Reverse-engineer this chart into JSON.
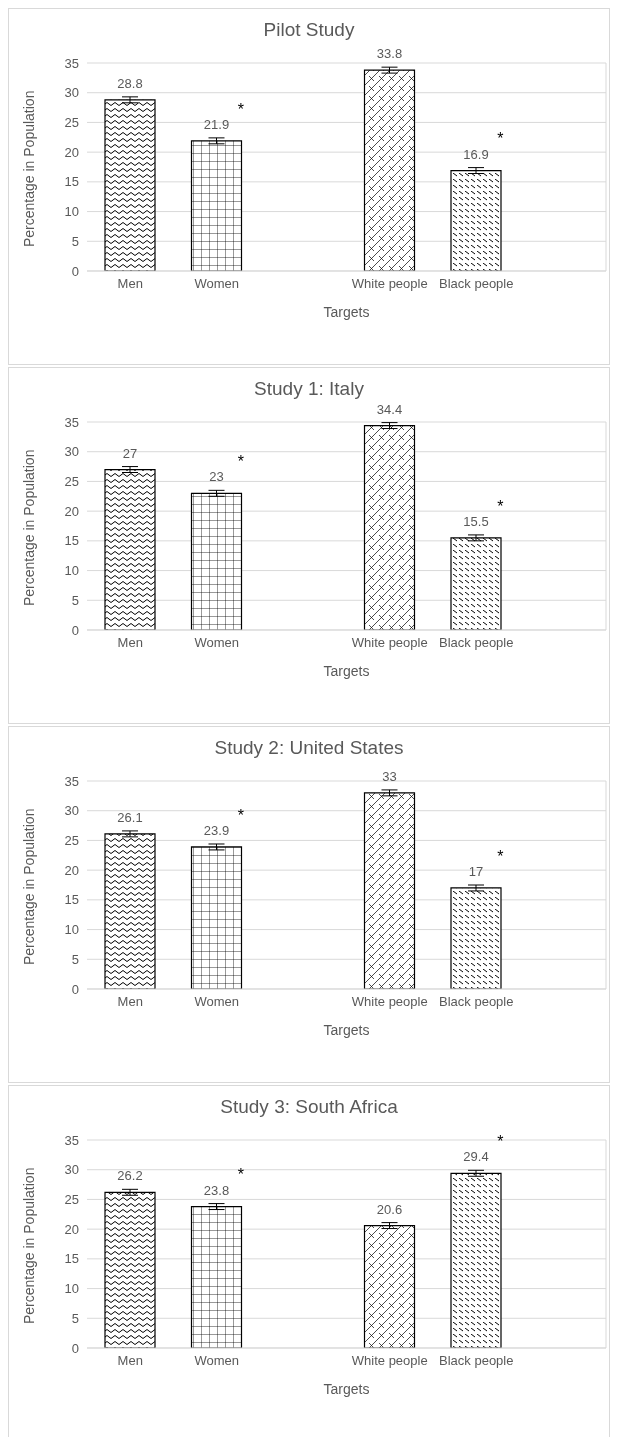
{
  "chart_data": [
    {
      "type": "bar",
      "title": "Pilot Study",
      "xlabel": "Targets",
      "ylabel": "Percentage in Population",
      "categories": [
        "Men",
        "Women",
        null,
        "White people",
        "Black people",
        null
      ],
      "values": [
        28.8,
        21.9,
        null,
        33.8,
        16.9,
        null
      ],
      "errors": [
        0.5,
        0.5,
        null,
        0.5,
        0.5,
        null
      ],
      "colors": [
        "#000000",
        "#000000",
        "#000000",
        "#000000",
        "#000000",
        "#000000"
      ],
      "data_labels": true,
      "ylim": [
        0,
        35
      ],
      "yticks": [
        0,
        5,
        10,
        15,
        20,
        25,
        30,
        35
      ],
      "grid": "y",
      "legend": false,
      "annotations": [
        {
          "text": "*",
          "x": "Women",
          "y": 21.9
        },
        {
          "text": "*",
          "x": "Black people",
          "y": 16.9
        }
      ]
    },
    {
      "type": "bar",
      "title": "Study 1: Italy",
      "xlabel": "Targets",
      "ylabel": "Percentage in Population",
      "categories": [
        "Men",
        "Women",
        null,
        "White people",
        "Black people",
        null
      ],
      "values": [
        27,
        23,
        null,
        34.4,
        15.5,
        null
      ],
      "errors": [
        0.5,
        0.5,
        null,
        0.5,
        0.5,
        null
      ],
      "colors": [
        "#000000",
        "#000000",
        "#000000",
        "#000000",
        "#000000",
        "#000000"
      ],
      "data_labels": true,
      "ylim": [
        0,
        35
      ],
      "yticks": [
        0,
        5,
        10,
        15,
        20,
        25,
        30,
        35
      ],
      "grid": "y",
      "legend": false,
      "annotations": [
        {
          "text": "*",
          "x": "Women",
          "y": 23
        },
        {
          "text": "*",
          "x": "Black people",
          "y": 15.5
        }
      ]
    },
    {
      "type": "bar",
      "title": "Study 2: United States",
      "xlabel": "Targets",
      "ylabel": "Percentage in Population",
      "categories": [
        "Men",
        "Women",
        null,
        "White people",
        "Black people",
        null
      ],
      "values": [
        26.1,
        23.9,
        null,
        33,
        17,
        null
      ],
      "errors": [
        0.5,
        0.5,
        null,
        0.5,
        0.5,
        null
      ],
      "colors": [
        "#000000",
        "#000000",
        "#000000",
        "#000000",
        "#000000",
        "#000000"
      ],
      "data_labels": true,
      "ylim": [
        0,
        35
      ],
      "yticks": [
        0,
        5,
        10,
        15,
        20,
        25,
        30,
        35
      ],
      "grid": "y",
      "legend": false,
      "annotations": [
        {
          "text": "*",
          "x": "Women",
          "y": 23.9
        },
        {
          "text": "*",
          "x": "Black people",
          "y": 17
        }
      ]
    },
    {
      "type": "bar",
      "title": "Study 3: South Africa",
      "xlabel": "Targets",
      "ylabel": "Percentage in Population",
      "categories": [
        "Men",
        "Women",
        null,
        "White people",
        "Black people",
        null
      ],
      "values": [
        26.2,
        23.8,
        null,
        20.6,
        29.4,
        null
      ],
      "errors": [
        0.5,
        0.5,
        null,
        0.5,
        0.5,
        null
      ],
      "colors": [
        "#000000",
        "#000000",
        "#000000",
        "#000000",
        "#000000",
        "#000000"
      ],
      "data_labels": true,
      "ylim": [
        0,
        35
      ],
      "yticks": [
        0,
        5,
        10,
        15,
        20,
        25,
        30,
        35
      ],
      "grid": "y",
      "legend": false,
      "annotations": [
        {
          "text": "*",
          "x": "Women",
          "y": 23.8
        },
        {
          "text": "*",
          "x": "Black people",
          "y": 29.4
        }
      ]
    }
  ]
}
